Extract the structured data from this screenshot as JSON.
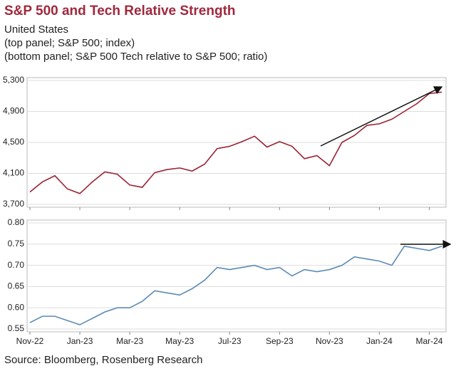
{
  "title": "S&P 500 and Tech Relative Strength",
  "subtitle": [
    "United States",
    "(top panel; S&P 500; index)",
    "(bottom panel; S&P 500 Tech relative to S&P 500; ratio)"
  ],
  "source": "Source: Bloomberg, Rosenberg Research",
  "chart_data": [
    {
      "type": "line",
      "color": "#9b2335",
      "grid": true,
      "categories": [
        "Nov-22",
        null,
        null,
        null,
        "Jan-23",
        null,
        null,
        null,
        "Mar-23",
        null,
        null,
        null,
        "May-23",
        null,
        null,
        null,
        "Jul-23",
        null,
        null,
        null,
        "Sep-23",
        null,
        null,
        null,
        "Nov-23",
        null,
        null,
        null,
        "Jan-24",
        null,
        null,
        null,
        "Mar-24",
        null
      ],
      "values": [
        3860,
        3990,
        4070,
        3900,
        3840,
        3990,
        4120,
        4090,
        3950,
        3920,
        4110,
        4150,
        4170,
        4130,
        4220,
        4420,
        4450,
        4510,
        4580,
        4440,
        4510,
        4450,
        4290,
        4330,
        4200,
        4500,
        4590,
        4720,
        4740,
        4800,
        4900,
        5000,
        5130,
        5150
      ],
      "ylim": [
        3700,
        5300
      ],
      "yticks": [
        {
          "value": 3700,
          "label": "3,700"
        },
        {
          "value": 4100,
          "label": "4,100"
        },
        {
          "value": 4500,
          "label": "4,500"
        },
        {
          "value": 4900,
          "label": "4,900"
        },
        {
          "value": 5300,
          "label": "5,300"
        }
      ]
    },
    {
      "type": "line",
      "color": "#5b8ab5",
      "grid": true,
      "categories": [
        "Nov-22",
        null,
        null,
        null,
        "Jan-23",
        null,
        null,
        null,
        "Mar-23",
        null,
        null,
        null,
        "May-23",
        null,
        null,
        null,
        "Jul-23",
        null,
        null,
        null,
        "Sep-23",
        null,
        null,
        null,
        "Nov-23",
        null,
        null,
        null,
        "Jan-24",
        null,
        null,
        null,
        "Mar-24",
        null
      ],
      "values": [
        0.565,
        0.58,
        0.58,
        0.57,
        0.56,
        0.575,
        0.59,
        0.6,
        0.6,
        0.615,
        0.64,
        0.635,
        0.63,
        0.645,
        0.665,
        0.695,
        0.69,
        0.695,
        0.7,
        0.69,
        0.695,
        0.675,
        0.69,
        0.685,
        0.69,
        0.7,
        0.72,
        0.715,
        0.71,
        0.7,
        0.745,
        0.74,
        0.735,
        0.745
      ],
      "ylim": [
        0.55,
        0.8
      ],
      "yticks": [
        0.55,
        {
          "value": 0.6,
          "label": "0.60"
        },
        0.65,
        {
          "value": 0.7,
          "label": "0.70"
        },
        0.75,
        {
          "value": 0.8,
          "label": "0.80"
        }
      ]
    }
  ]
}
